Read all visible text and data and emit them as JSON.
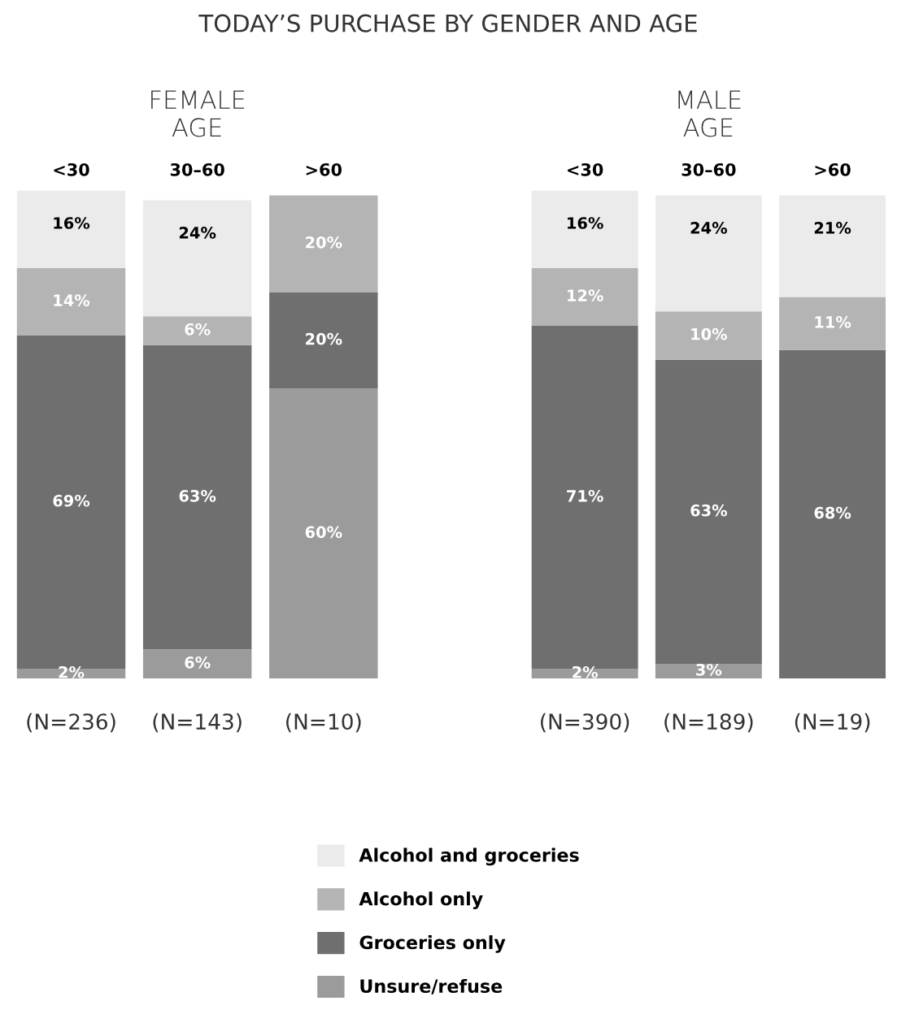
{
  "chart_data": [
    {
      "type": "bar",
      "title": "TODAY’S PURCHASE BY GENDER AND AGE",
      "subtitle": "FEMALE\nAGE",
      "categories": [
        "<30",
        "30–60",
        ">60"
      ],
      "stacked": true,
      "ylim": [
        0,
        101
      ],
      "tick_labels": "x",
      "legend": "bottom",
      "series": [
        {
          "name": "Unsure/refuse",
          "color": "#9b9b9b",
          "values": [
            2,
            6,
            60
          ],
          "value_labels": [
            "2%",
            "6%",
            "60%"
          ]
        },
        {
          "name": "Groceries only",
          "color": "#6f6f6f",
          "values": [
            69,
            63,
            20
          ],
          "value_labels": [
            "69%",
            "63%",
            "20%"
          ]
        },
        {
          "name": "Alcohol only",
          "color": "#b4b4b4",
          "values": [
            14,
            6,
            20
          ],
          "value_labels": [
            "14%",
            "6%",
            "20%"
          ]
        },
        {
          "name": "Alcohol and groceries",
          "color": "#ebebeb",
          "values": [
            16,
            24,
            0
          ],
          "value_labels": [
            "16%",
            "24%",
            null
          ]
        }
      ],
      "annotations": [
        "(N=236)",
        "(N=143)",
        "(N=10)"
      ]
    },
    {
      "type": "bar",
      "subtitle": "MALE\nAGE",
      "categories": [
        "<30",
        "30–60",
        ">60"
      ],
      "stacked": true,
      "ylim": [
        0,
        101
      ],
      "tick_labels": "x",
      "series": [
        {
          "color": "#9b9b9b",
          "values": [
            2,
            3,
            0
          ],
          "value_labels": [
            "2%",
            "3%",
            null
          ]
        },
        {
          "color": "#6f6f6f",
          "values": [
            71,
            63,
            68
          ],
          "value_labels": [
            "71%",
            "63%",
            "68%"
          ]
        },
        {
          "color": "#b4b4b4",
          "values": [
            12,
            10,
            11
          ],
          "value_labels": [
            "12%",
            "10%",
            "11%"
          ]
        },
        {
          "color": "#ebebeb",
          "values": [
            16,
            24,
            21
          ],
          "value_labels": [
            "16%",
            "24%",
            "21%"
          ]
        }
      ],
      "annotations": [
        "(N=390)",
        "(N=189)",
        "(N=19)"
      ]
    }
  ]
}
